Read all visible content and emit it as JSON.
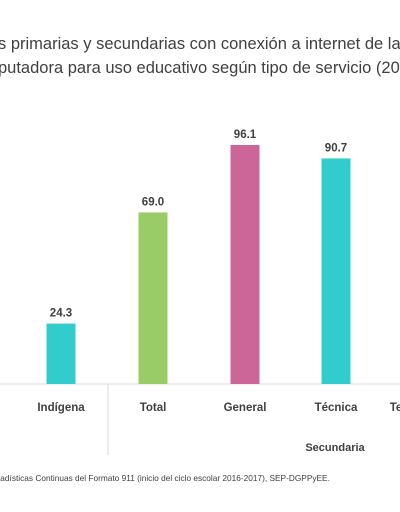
{
  "chart_data": {
    "type": "bar",
    "title_lines": [
      "s primarias y secundarias con conexión a internet de la",
      "putadora para uso educativo según tipo de servicio (20"
    ],
    "categories": [
      "Indígena",
      "Total",
      "General",
      "Técnica",
      "Te"
    ],
    "values": [
      24.3,
      69.0,
      96.1,
      90.7,
      null
    ],
    "value_labels": [
      "24.3",
      "69.0",
      "96.1",
      "90.7",
      ""
    ],
    "colors": [
      "#33CCCC",
      "#99CC66",
      "#CC6699",
      "#33CCCC",
      ""
    ],
    "group_labels": [
      {
        "label": "Secundaria"
      }
    ],
    "source": "tadísticas Continuas del Formato 911 (inicio del ciclo escolar 2016-2017), SEP-DGPPyEE.",
    "ylim": [
      0,
      100
    ],
    "grid": false
  }
}
